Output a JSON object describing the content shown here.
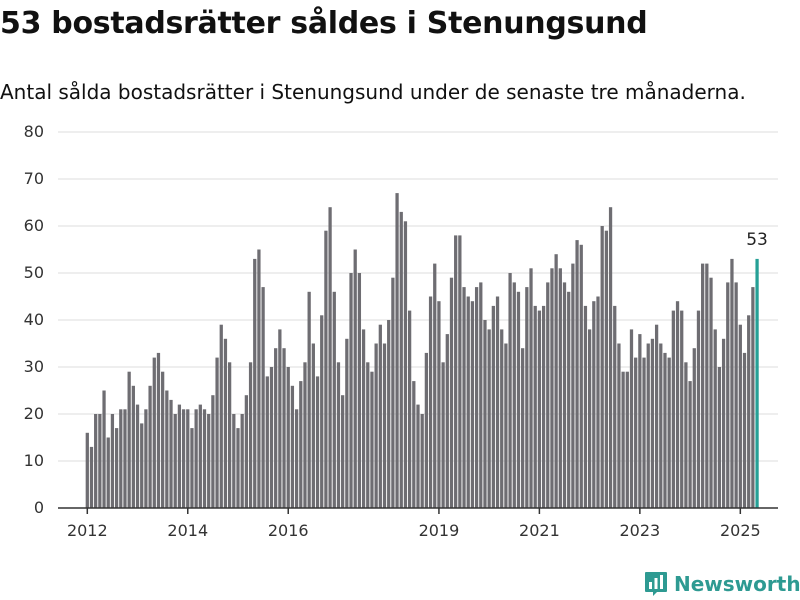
{
  "header": {
    "title": "53 bostadsrätter såldes i Stenungsund",
    "subtitle": "Antal sålda bostadsrätter i Stenungsund under de senaste tre månaderna."
  },
  "brand": {
    "name": "Newsworthy",
    "icon": "newsworthy-logo-icon",
    "color": "#2e9a92"
  },
  "colors": {
    "bar": "#6e6d72",
    "highlight": "#26a096",
    "grid": "#dddddd",
    "axis": "#333333"
  },
  "chart_data": {
    "type": "bar",
    "title": "53 bostadsrätter såldes i Stenungsund",
    "subtitle": "Antal sålda bostadsrätter i Stenungsund under de senaste tre månaderna.",
    "xlabel": "",
    "ylabel": "",
    "ylim": [
      0,
      80
    ],
    "yticks": [
      0,
      10,
      20,
      30,
      40,
      50,
      60,
      70,
      80
    ],
    "xticks": [
      "2012",
      "2014",
      "2016",
      "2019",
      "2021",
      "2023",
      "2025"
    ],
    "xlim": [
      "2011-06",
      "2025-10"
    ],
    "grid": true,
    "legend": "none",
    "series": [
      {
        "x": [
          "2012-01",
          "2012-02",
          "2012-03",
          "2012-04",
          "2012-05",
          "2012-06",
          "2012-07",
          "2012-08",
          "2012-09",
          "2012-10",
          "2012-11",
          "2012-12",
          "2013-01",
          "2013-02",
          "2013-03",
          "2013-04",
          "2013-05",
          "2013-06",
          "2013-07",
          "2013-08",
          "2013-09",
          "2013-10",
          "2013-11",
          "2013-12",
          "2014-01",
          "2014-02",
          "2014-03",
          "2014-04",
          "2014-05",
          "2014-06",
          "2014-07",
          "2014-08",
          "2014-09",
          "2014-10",
          "2014-11",
          "2014-12",
          "2015-01",
          "2015-02",
          "2015-03",
          "2015-04",
          "2015-05",
          "2015-06",
          "2015-07",
          "2015-08",
          "2015-09",
          "2015-10",
          "2015-11",
          "2015-12",
          "2016-01",
          "2016-02",
          "2016-03",
          "2016-04",
          "2016-05",
          "2016-06",
          "2016-07",
          "2016-08",
          "2016-09",
          "2016-10",
          "2016-11",
          "2016-12",
          "2017-01",
          "2017-02",
          "2017-03",
          "2017-04",
          "2017-05",
          "2017-06",
          "2017-07",
          "2017-08",
          "2017-09",
          "2017-10",
          "2017-11",
          "2017-12",
          "2018-01",
          "2018-02",
          "2018-03",
          "2018-04",
          "2018-05",
          "2018-06",
          "2018-07",
          "2018-08",
          "2018-09",
          "2018-10",
          "2018-11",
          "2018-12",
          "2019-01",
          "2019-02",
          "2019-03",
          "2019-04",
          "2019-05",
          "2019-06",
          "2019-07",
          "2019-08",
          "2019-09",
          "2019-10",
          "2019-11",
          "2019-12",
          "2020-01",
          "2020-02",
          "2020-03",
          "2020-04",
          "2020-05",
          "2020-06",
          "2020-07",
          "2020-08",
          "2020-09",
          "2020-10",
          "2020-11",
          "2020-12",
          "2021-01",
          "2021-02",
          "2021-03",
          "2021-04",
          "2021-05",
          "2021-06",
          "2021-07",
          "2021-08",
          "2021-09",
          "2021-10",
          "2021-11",
          "2021-12",
          "2022-01",
          "2022-02",
          "2022-03",
          "2022-04",
          "2022-05",
          "2022-06",
          "2022-07",
          "2022-08",
          "2022-09",
          "2022-10",
          "2022-11",
          "2022-12",
          "2023-01",
          "2023-02",
          "2023-03",
          "2023-04",
          "2023-05",
          "2023-06",
          "2023-07",
          "2023-08",
          "2023-09",
          "2023-10",
          "2023-11",
          "2023-12",
          "2024-01",
          "2024-02",
          "2024-03",
          "2024-04",
          "2024-05",
          "2024-06",
          "2024-07",
          "2024-08",
          "2024-09",
          "2024-10",
          "2024-11",
          "2024-12",
          "2025-01",
          "2025-02",
          "2025-03",
          "2025-04",
          "2025-05"
        ],
        "values": [
          16,
          13,
          20,
          20,
          25,
          15,
          20,
          17,
          21,
          21,
          29,
          26,
          22,
          18,
          21,
          26,
          32,
          33,
          29,
          25,
          23,
          20,
          22,
          21,
          21,
          17,
          21,
          22,
          21,
          20,
          24,
          32,
          39,
          36,
          31,
          20,
          17,
          20,
          24,
          31,
          53,
          55,
          47,
          28,
          30,
          34,
          38,
          34,
          30,
          26,
          21,
          27,
          31,
          46,
          35,
          28,
          41,
          59,
          64,
          46,
          31,
          24,
          36,
          50,
          55,
          50,
          38,
          31,
          29,
          35,
          39,
          35,
          40,
          49,
          67,
          63,
          61,
          42,
          27,
          22,
          20,
          33,
          45,
          52,
          44,
          31,
          37,
          49,
          58,
          58,
          47,
          45,
          44,
          47,
          48,
          40,
          38,
          43,
          45,
          38,
          35,
          50,
          48,
          46,
          34,
          47,
          51,
          43,
          42,
          43,
          48,
          51,
          54,
          51,
          48,
          46,
          52,
          57,
          56,
          43,
          38,
          44,
          45,
          60,
          59,
          64,
          43,
          35,
          29,
          29,
          38,
          32,
          37,
          32,
          35,
          36,
          39,
          35,
          33,
          32,
          42,
          44,
          42,
          31,
          27,
          34,
          42,
          52,
          52,
          49,
          38,
          30,
          36,
          48,
          53,
          48,
          39,
          33,
          41,
          47,
          53
        ]
      }
    ],
    "annotations": [
      {
        "x": "2025-05",
        "y": 53,
        "text": "53"
      }
    ]
  }
}
